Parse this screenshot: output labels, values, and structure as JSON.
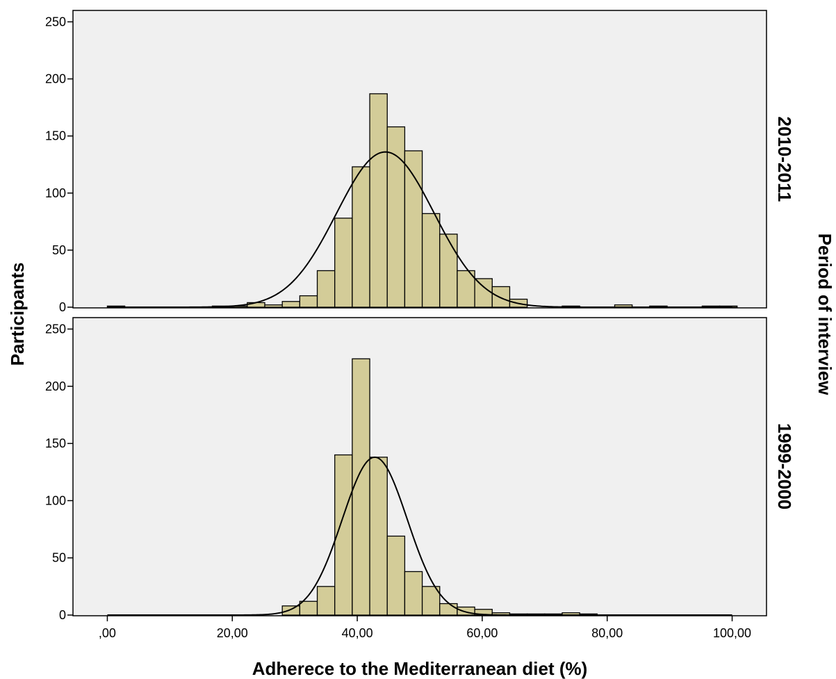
{
  "chart_data": {
    "type": "bar",
    "xlabel": "Adherece to the Mediterranean diet (%)",
    "ylabel": "Participants",
    "facet_label": "Period of interview",
    "xlim": [
      -5.5,
      105.5
    ],
    "ylim": [
      0,
      260
    ],
    "x_ticks": [
      0,
      20,
      40,
      60,
      80,
      100
    ],
    "x_tick_labels": [
      ",00",
      "20,00",
      "40,00",
      "60,00",
      "80,00",
      "100,00"
    ],
    "y_ticks": [
      0,
      50,
      100,
      150,
      200,
      250
    ],
    "y_tick_labels": [
      "0",
      "50",
      "100",
      "150",
      "200",
      "250"
    ],
    "bin_width": 2.8,
    "colors": {
      "bar_fill": "#d3cc98",
      "bar_stroke": "#000000",
      "panel_bg": "#f0f0f0"
    },
    "panels": [
      {
        "label": "2010-2011",
        "bins_start": [
          0,
          16.8,
          19.6,
          22.4,
          25.2,
          28,
          30.8,
          33.6,
          36.4,
          39.2,
          42,
          44.8,
          47.6,
          50.4,
          53.2,
          56,
          58.8,
          61.6,
          64.4,
          72.8,
          81.2,
          86.8,
          95.2,
          98
        ],
        "counts": [
          1,
          1,
          1,
          4,
          2,
          5,
          10,
          32,
          78,
          123,
          187,
          158,
          137,
          82,
          64,
          32,
          25,
          18,
          7,
          1,
          2,
          1,
          1,
          1
        ],
        "normal_curve": {
          "mean": 44.5,
          "sd": 7.8,
          "peak": 136
        }
      },
      {
        "label": "1999-2000",
        "bins_start": [
          28,
          30.8,
          33.6,
          36.4,
          39.2,
          42,
          44.8,
          47.6,
          50.4,
          53.2,
          56,
          58.8,
          61.6,
          64.4,
          67.2,
          70,
          72.8,
          75.6
        ],
        "counts": [
          8,
          12,
          25,
          140,
          224,
          138,
          69,
          38,
          25,
          10,
          7,
          5,
          2,
          1,
          1,
          1,
          2,
          1
        ],
        "normal_curve": {
          "mean": 42.8,
          "sd": 5.2,
          "peak": 138
        }
      }
    ]
  }
}
